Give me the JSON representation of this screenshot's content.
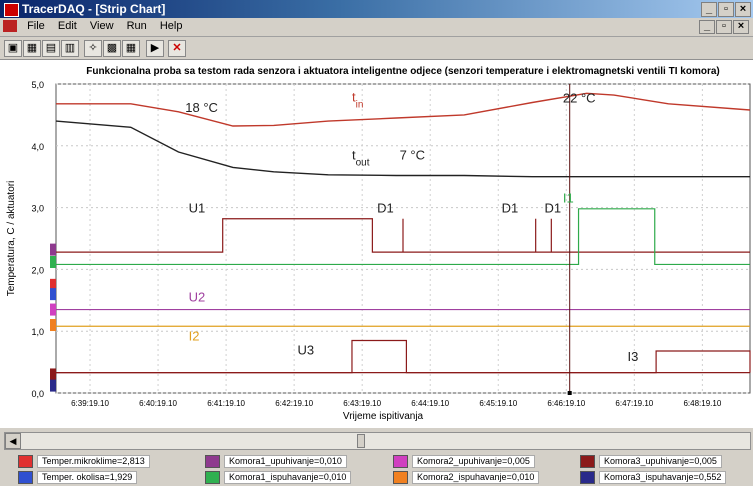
{
  "window": {
    "title": "TracerDAQ - [Strip Chart]"
  },
  "menu": [
    "File",
    "Edit",
    "View",
    "Run",
    "Help"
  ],
  "toolbar": {
    "buttons": [
      {
        "icon": "save-icon",
        "glyph": "▣"
      },
      {
        "icon": "grid-icon",
        "glyph": "▦"
      },
      {
        "icon": "open-icon",
        "glyph": "▤"
      },
      {
        "icon": "print-icon",
        "glyph": "▥"
      },
      {
        "icon": "wand-icon",
        "glyph": "✧"
      },
      {
        "icon": "chart-icon",
        "glyph": "▩"
      },
      {
        "icon": "table-icon",
        "glyph": "▦"
      },
      {
        "icon": "play-icon",
        "glyph": "▶"
      },
      {
        "icon": "stop-icon",
        "glyph": "✕"
      }
    ]
  },
  "chart_data": {
    "type": "line",
    "title": "Funkcionalna proba sa testom rada senzora i aktuatora inteligentne odjece (senzori temperature i elektromagnetski ventili TI komora)",
    "xlabel": "Vrijeme ispitivanja",
    "ylabel": "Temperatura, C / aktuatori",
    "ylim": [
      0,
      5
    ],
    "yticks": [
      "0,0",
      "1,0",
      "2,0",
      "3,0",
      "4,0",
      "5,0"
    ],
    "xticks": [
      "6:39:19.10",
      "6:40:19.10",
      "6:41:19.10",
      "6:42:19.10",
      "6:43:19.10",
      "6:44:19.10",
      "6:45:19.10",
      "6:46:19.10",
      "6:47:19.10",
      "6:48:19.10"
    ],
    "x_minutes": [
      0,
      1.1,
      1.8,
      2.6,
      3.2,
      4,
      5,
      6,
      7,
      7.8,
      8.2,
      8.6,
      9,
      10.2
    ],
    "series": [
      {
        "name": "t_in",
        "color": "#c0392b",
        "values": [
          4.68,
          4.68,
          4.55,
          4.32,
          4.33,
          4.4,
          4.45,
          4.5,
          4.7,
          4.85,
          4.82,
          4.75,
          4.68,
          4.58
        ]
      },
      {
        "name": "t_out",
        "color": "#222222",
        "values": [
          4.4,
          4.3,
          3.9,
          3.65,
          3.58,
          3.53,
          3.52,
          3.52,
          3.5,
          3.5,
          3.5,
          3.5,
          3.5,
          3.5
        ]
      }
    ],
    "digital": [
      {
        "name": "U1",
        "color": "#8b1a1a",
        "low": 2.28,
        "high": 2.82,
        "segments": [
          [
            2.45,
            4.65
          ]
        ]
      },
      {
        "name": "D1",
        "color": "#8b1a1a",
        "low": 2.28,
        "high": 2.82,
        "pulses": [
          5.1,
          7.05,
          7.28
        ]
      },
      {
        "name": "I1",
        "color": "#2eaa4a",
        "low": 2.08,
        "high": 2.98,
        "segments": [
          [
            7.68,
            8.8
          ]
        ]
      },
      {
        "name": "U2",
        "color": "#a040a0",
        "low": 1.35,
        "high": 1.35,
        "segments": []
      },
      {
        "name": "I2",
        "color": "#e0a020",
        "low": 1.08,
        "high": 1.08,
        "segments": []
      },
      {
        "name": "U3",
        "color": "#8b1a1a",
        "low": 0.33,
        "high": 0.85,
        "segments": [
          [
            4.35,
            5.15
          ]
        ]
      },
      {
        "name": "I3",
        "color": "#8b1a1a",
        "low": 0.33,
        "high": 0.68,
        "segments": [
          [
            8.82,
            10.2
          ]
        ]
      }
    ],
    "annotations": [
      {
        "text": "18 °C",
        "x": 1.9,
        "y": 4.55,
        "color": "#222222"
      },
      {
        "text": "t",
        "sub": "in",
        "x": 4.35,
        "y": 4.72,
        "color": "#c0392b"
      },
      {
        "text": "22 °C",
        "x": 7.45,
        "y": 4.7,
        "color": "#222222"
      },
      {
        "text": "t",
        "sub": "out",
        "x": 4.35,
        "y": 3.78,
        "color": "#222222"
      },
      {
        "text": "7 °C",
        "x": 5.05,
        "y": 3.78,
        "color": "#222222"
      },
      {
        "text": "U1",
        "x": 1.95,
        "y": 2.92,
        "color": "#222222"
      },
      {
        "text": "D1",
        "x": 4.72,
        "y": 2.92,
        "color": "#222222"
      },
      {
        "text": "D1",
        "x": 6.55,
        "y": 2.92,
        "color": "#222222"
      },
      {
        "text": "D1",
        "x": 7.18,
        "y": 2.92,
        "color": "#222222"
      },
      {
        "text": "I1",
        "x": 7.45,
        "y": 3.08,
        "color": "#2eaa4a"
      },
      {
        "text": "U2",
        "x": 1.95,
        "y": 1.48,
        "color": "#a040a0"
      },
      {
        "text": "I2",
        "x": 1.95,
        "y": 0.85,
        "color": "#e0a020"
      },
      {
        "text": "U3",
        "x": 3.55,
        "y": 0.62,
        "color": "#222222"
      },
      {
        "text": "I3",
        "x": 8.4,
        "y": 0.52,
        "color": "#222222"
      }
    ],
    "cursor_x": 7.55
  },
  "legend": [
    {
      "label": "Temper.mikroklime=2,813",
      "color": "#e03030"
    },
    {
      "label": "Komora1_upuhivanje=0,010",
      "color": "#8e3a8e"
    },
    {
      "label": "Komora2_upuhivanje=0,005",
      "color": "#d040c0"
    },
    {
      "label": "Komora3_upuhivanje=0,005",
      "color": "#8b1a1a"
    },
    {
      "label": "Temper. okolisa=1,929",
      "color": "#3050d0"
    },
    {
      "label": "Komora1_ispuhavanje=0,010",
      "color": "#30b050"
    },
    {
      "label": "Komora2_ispuhavanje=0,010",
      "color": "#f08020"
    },
    {
      "label": "Komora3_ispuhavanje=0,552",
      "color": "#2a2a8a"
    }
  ]
}
